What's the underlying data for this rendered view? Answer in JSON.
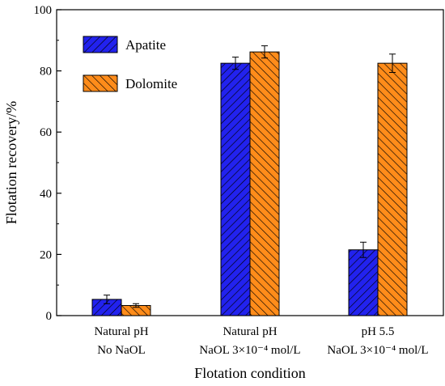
{
  "chart_data": {
    "type": "bar",
    "xlabel": "Flotation condition",
    "ylabel": "Flotation recovery/%",
    "ylim": [
      0,
      100
    ],
    "yticks": [
      0,
      20,
      40,
      60,
      80,
      100
    ],
    "grid": false,
    "legend_position": "top-left",
    "categories": [
      {
        "line1": "Natural pH",
        "line2": "No NaOL"
      },
      {
        "line1": "Natural pH",
        "line2": "NaOL 3×10⁻⁴ mol/L"
      },
      {
        "line1": "pH 5.5",
        "line2": "NaOL 3×10⁻⁴ mol/L"
      }
    ],
    "series": [
      {
        "name": "Apatite",
        "values": [
          5.3,
          82.5,
          21.5
        ],
        "errors": [
          1.4,
          2.0,
          2.5
        ],
        "color": "#2222ee",
        "pattern": "hatch-back"
      },
      {
        "name": "Dolomite",
        "values": [
          3.3,
          86.2,
          82.5
        ],
        "errors": [
          0.6,
          2.0,
          3.0
        ],
        "color": "#ff8c1a",
        "pattern": "hatch-back"
      }
    ]
  }
}
